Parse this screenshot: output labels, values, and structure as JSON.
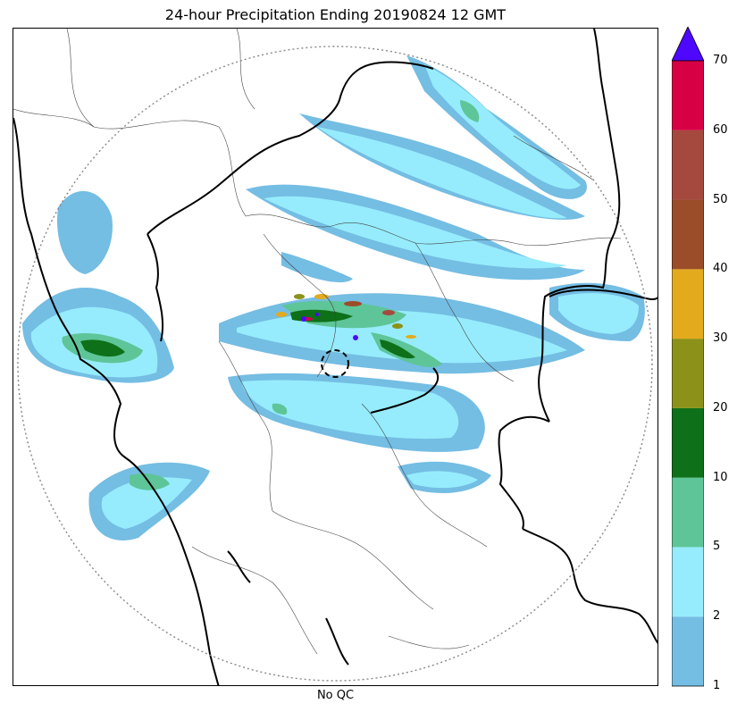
{
  "title": "24-hour Precipitation Ending 20190824 12 GMT",
  "xlabel": "No QC",
  "colorbar": {
    "levels": [
      "1",
      "2",
      "5",
      "10",
      "20",
      "30",
      "40",
      "50",
      "60",
      "70"
    ],
    "colors": [
      "#74bde3",
      "#96ecfc",
      "#5ec598",
      "#0e7018",
      "#8c9219",
      "#e3aa1e",
      "#9b4d29",
      "#a5493f",
      "#d70045"
    ],
    "extend_max_color": "#4e08ff"
  },
  "map": {
    "range_ring_style": "dotted gray circle",
    "radar_site_marker": "dashed black circle",
    "boundaries": "national (thick black) and regional (thin gray) borders"
  }
}
